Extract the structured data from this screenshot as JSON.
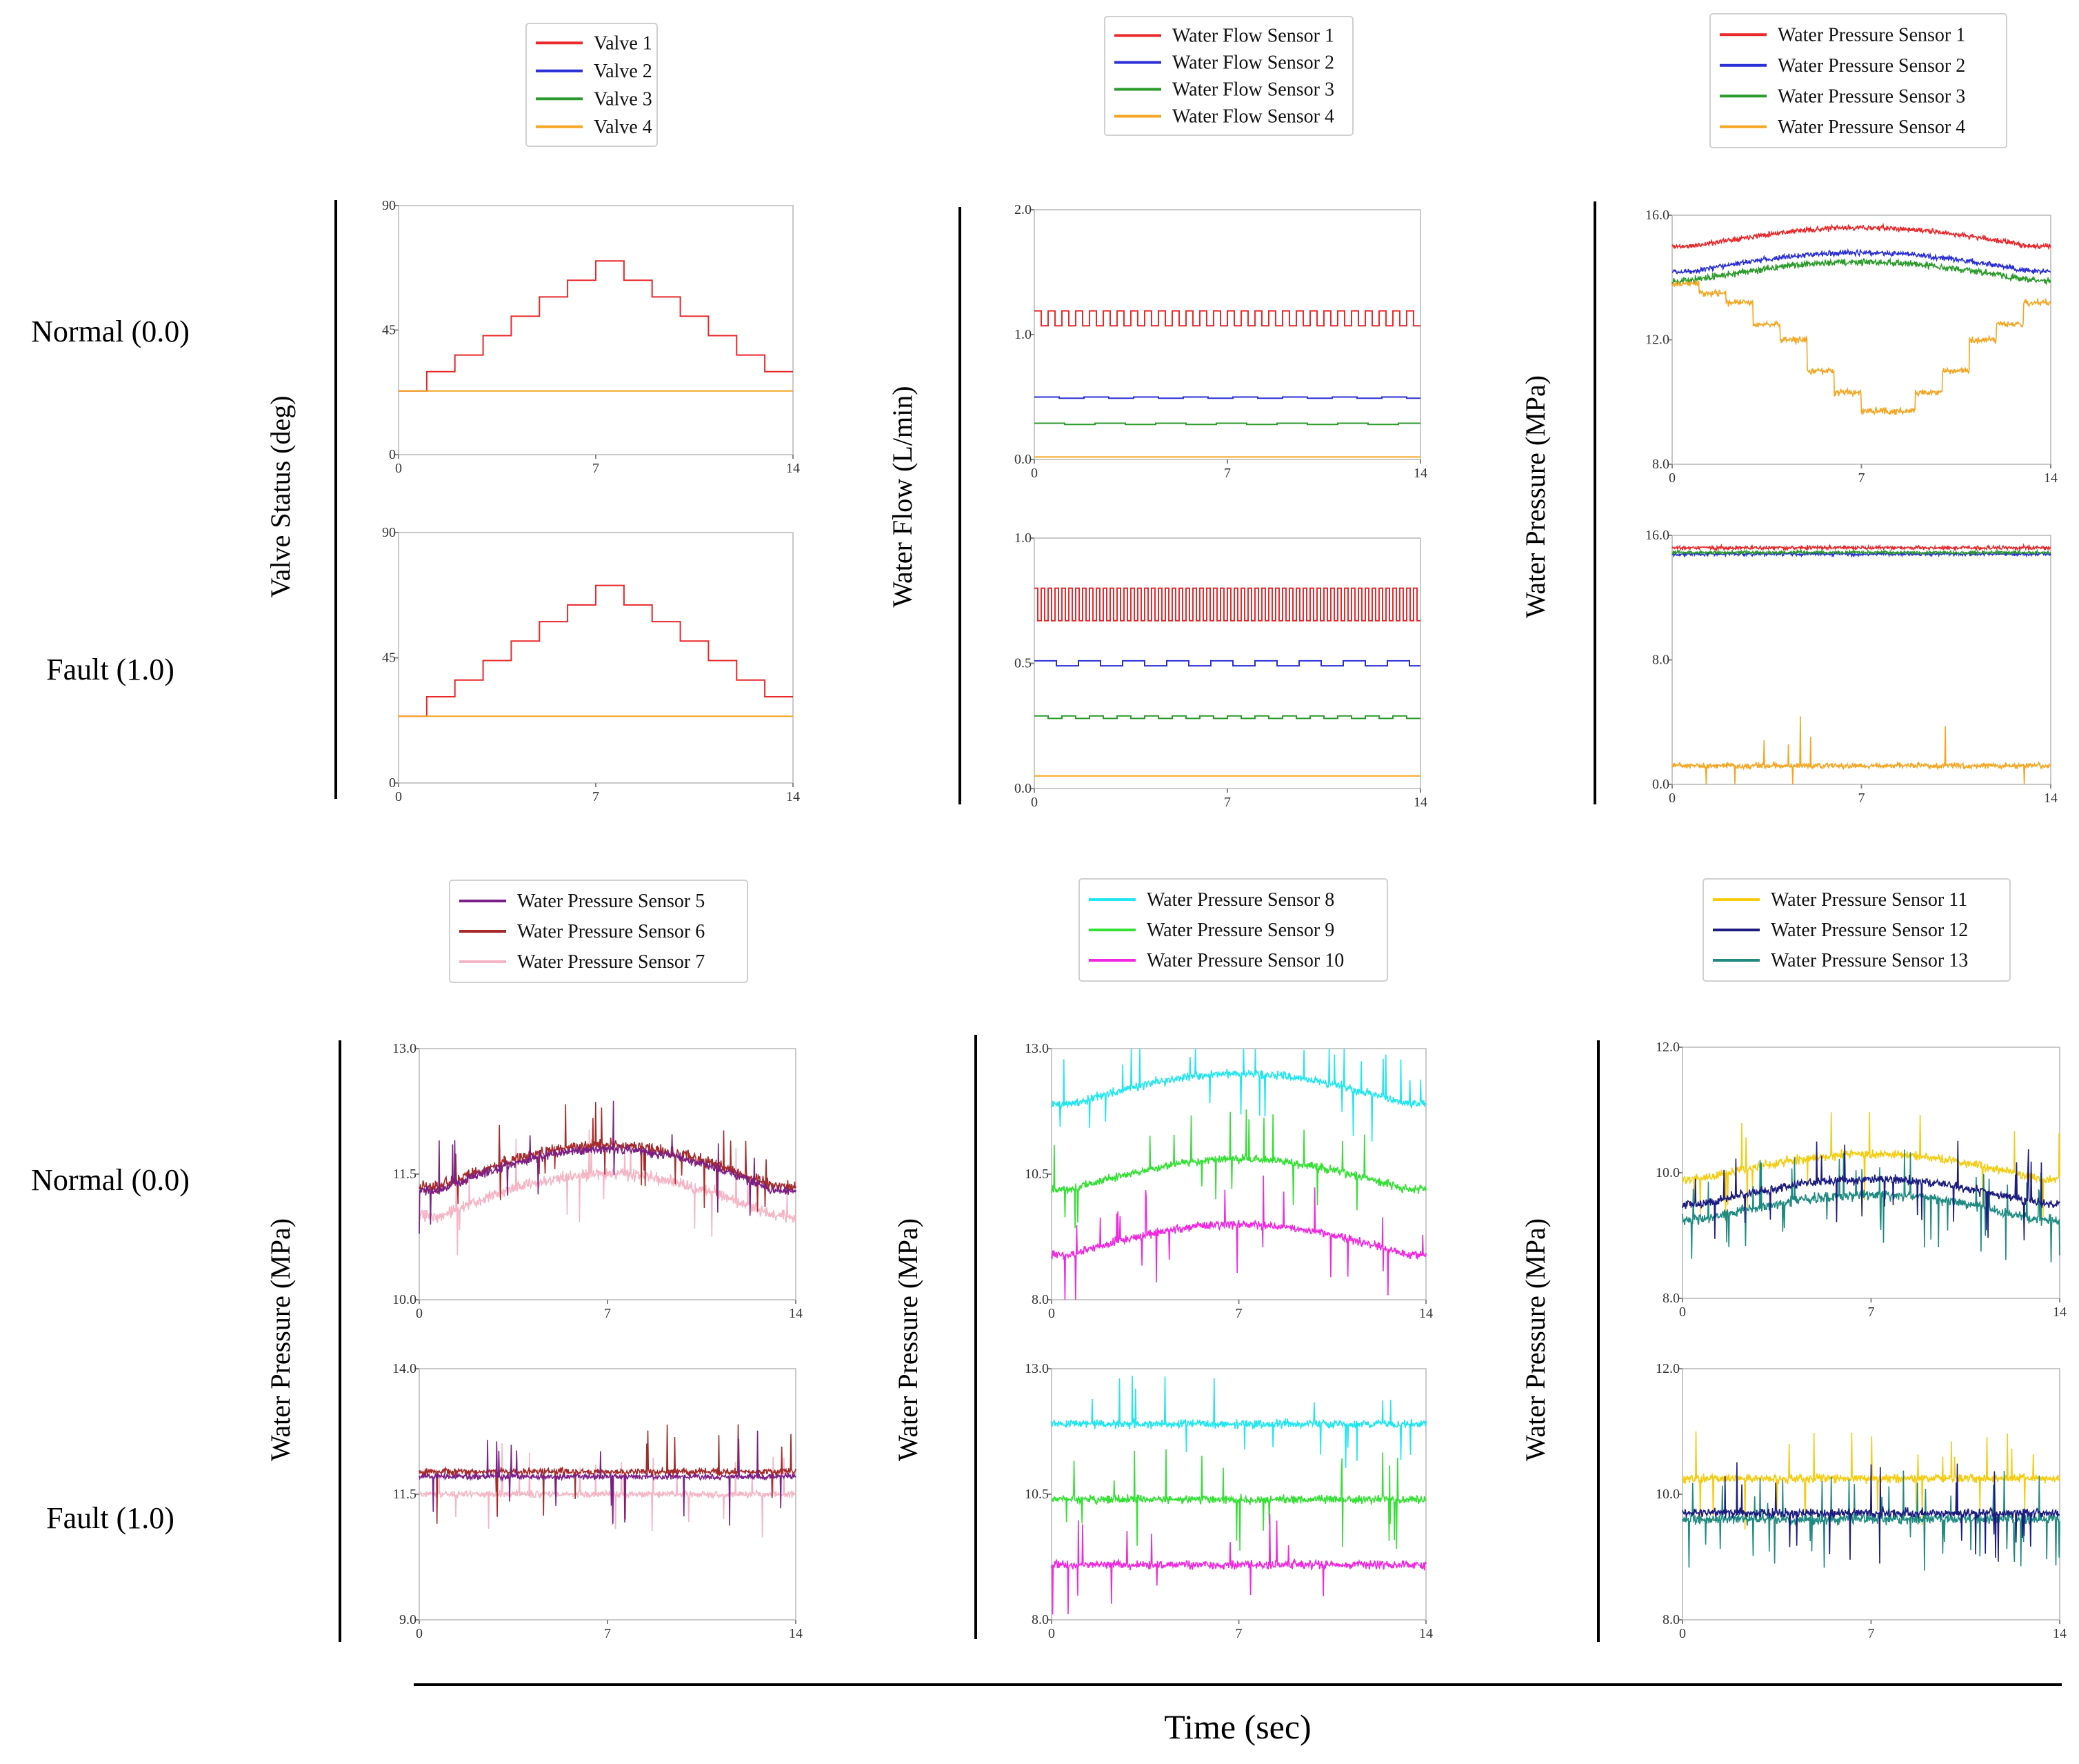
{
  "figure": {
    "row_labels": {
      "normal": "Normal (0.0)",
      "fault": "Fault (1.0)"
    },
    "xlabel": "Time (sec)"
  },
  "colors": {
    "red": "#e8282b",
    "blue": "#2a2ed6",
    "green": "#2a9a2a",
    "orange": "#f5a623",
    "purple": "#7b1f86",
    "brown": "#a52a2a",
    "pink": "#f5b5c5",
    "cyan": "#22e6ee",
    "lime": "#33e033",
    "magenta": "#f028e0",
    "gold": "#f5cc10",
    "navy": "#1c1c80",
    "teal": "#1f8a80"
  },
  "chart_data": [
    {
      "id": "valve",
      "type": "line",
      "ylabel": "Valve Status (deg)",
      "legend": [
        {
          "name": "Valve 1",
          "color": "red"
        },
        {
          "name": "Valve 2",
          "color": "blue"
        },
        {
          "name": "Valve 3",
          "color": "green"
        },
        {
          "name": "Valve 4",
          "color": "orange"
        }
      ],
      "xlim": [
        0,
        14
      ],
      "xticks": [
        "0",
        "7",
        "14"
      ],
      "normal": {
        "ylim": [
          0,
          90
        ],
        "yticks": [
          "0",
          "45",
          "90"
        ],
        "series": [
          {
            "name": "Valve 1",
            "color": "red",
            "style": "steps",
            "x": [
              0,
              1,
              2,
              3,
              4,
              5,
              6,
              7,
              8,
              9,
              10,
              11,
              12,
              13,
              14
            ],
            "values": [
              23,
              30,
              36,
              43,
              50,
              57,
              63,
              70,
              63,
              57,
              50,
              43,
              36,
              30,
              23
            ]
          },
          {
            "name": "Valve 4",
            "color": "orange",
            "style": "flat",
            "value": 23
          }
        ]
      },
      "fault": {
        "ylim": [
          0,
          90
        ],
        "yticks": [
          "0",
          "45",
          "90"
        ],
        "series": [
          {
            "name": "Valve 1",
            "color": "red",
            "style": "steps",
            "x": [
              0,
              1,
              2,
              3,
              4,
              5,
              6,
              7,
              8,
              9,
              10,
              11,
              12,
              13,
              14
            ],
            "values": [
              24,
              31,
              37,
              44,
              51,
              58,
              64,
              71,
              64,
              58,
              51,
              44,
              37,
              31,
              24
            ]
          },
          {
            "name": "Valve 4",
            "color": "orange",
            "style": "flat",
            "value": 24
          }
        ]
      }
    },
    {
      "id": "flow",
      "type": "line",
      "ylabel": "Water Flow (L/min)",
      "legend": [
        {
          "name": "Water Flow Sensor 1",
          "color": "red"
        },
        {
          "name": "Water Flow Sensor 2",
          "color": "blue"
        },
        {
          "name": "Water Flow Sensor 3",
          "color": "green"
        },
        {
          "name": "Water Flow Sensor 4",
          "color": "orange"
        }
      ],
      "xlim": [
        0,
        14
      ],
      "xticks": [
        "0",
        "7",
        "14"
      ],
      "normal": {
        "ylim": [
          0,
          2
        ],
        "yticks": [
          "0.0",
          "1.0",
          "2.0"
        ],
        "series": [
          {
            "name": "Water Flow Sensor 1",
            "color": "red",
            "style": "square",
            "low": 1.07,
            "high": 1.19,
            "period": 0.5
          },
          {
            "name": "Water Flow Sensor 2",
            "color": "blue",
            "style": "square",
            "low": 0.49,
            "high": 0.5,
            "period": 1.8
          },
          {
            "name": "Water Flow Sensor 3",
            "color": "green",
            "style": "square",
            "low": 0.28,
            "high": 0.29,
            "period": 2.2
          },
          {
            "name": "Water Flow Sensor 4",
            "color": "orange",
            "style": "flat",
            "value": 0.02
          }
        ]
      },
      "fault": {
        "ylim": [
          0,
          1
        ],
        "yticks": [
          "0.0",
          "0.5",
          "1.0"
        ],
        "series": [
          {
            "name": "Water Flow Sensor 1",
            "color": "red",
            "style": "square",
            "low": 0.67,
            "high": 0.8,
            "period": 0.25
          },
          {
            "name": "Water Flow Sensor 2",
            "color": "blue",
            "style": "square",
            "low": 0.49,
            "high": 0.51,
            "period": 1.6
          },
          {
            "name": "Water Flow Sensor 3",
            "color": "green",
            "style": "square",
            "low": 0.28,
            "high": 0.29,
            "period": 1.0
          },
          {
            "name": "Water Flow Sensor 4",
            "color": "orange",
            "style": "flat",
            "value": 0.05
          }
        ]
      }
    },
    {
      "id": "pressure-1-4",
      "type": "line",
      "ylabel": "Water Pressure (MPa)",
      "legend": [
        {
          "name": "Water Pressure Sensor 1",
          "color": "red"
        },
        {
          "name": "Water Pressure Sensor 2",
          "color": "blue"
        },
        {
          "name": "Water Pressure Sensor 3",
          "color": "green"
        },
        {
          "name": "Water Pressure Sensor 4",
          "color": "orange"
        }
      ],
      "xlim": [
        0,
        14
      ],
      "xticks": [
        "0",
        "7",
        "14"
      ],
      "normal": {
        "ylim": [
          8,
          16
        ],
        "yticks": [
          "8.0",
          "12.0",
          "16.0"
        ],
        "series": [
          {
            "name": "Water Pressure Sensor 1",
            "color": "red",
            "style": "noisy",
            "base": 15.0,
            "bump": 0.6,
            "noise": 0.12,
            "spikes": 0,
            "seed": 11
          },
          {
            "name": "Water Pressure Sensor 2",
            "color": "blue",
            "style": "noisy",
            "base": 14.2,
            "bump": 0.6,
            "noise": 0.12,
            "spikes": 0,
            "seed": 12
          },
          {
            "name": "Water Pressure Sensor 3",
            "color": "green",
            "style": "noisy",
            "base": 13.9,
            "bump": 0.6,
            "noise": 0.15,
            "spikes": 0,
            "seed": 13
          },
          {
            "name": "Water Pressure Sensor 4",
            "color": "orange",
            "style": "stepnoisy",
            "x": [
              0,
              1,
              2,
              3,
              4,
              5,
              6,
              7,
              8,
              9,
              10,
              11,
              12,
              13,
              14
            ],
            "values": [
              13.8,
              13.5,
              13.2,
              12.5,
              12.0,
              11.0,
              10.3,
              9.7,
              9.7,
              10.3,
              11.0,
              12.0,
              12.5,
              13.2,
              13.2
            ],
            "noise": 0.15,
            "seed": 14
          }
        ]
      },
      "fault": {
        "ylim": [
          0,
          16
        ],
        "yticks": [
          "0.0",
          "8.0",
          "16.0"
        ],
        "series": [
          {
            "name": "Water Pressure Sensor 1",
            "color": "red",
            "style": "noisy",
            "base": 15.2,
            "bump": 0,
            "noise": 0.18,
            "spikes": 0,
            "seed": 21
          },
          {
            "name": "Water Pressure Sensor 2",
            "color": "blue",
            "style": "noisy",
            "base": 14.8,
            "bump": 0,
            "noise": 0.15,
            "spikes": 0,
            "seed": 22
          },
          {
            "name": "Water Pressure Sensor 3",
            "color": "green",
            "style": "noisy",
            "base": 14.9,
            "bump": 0,
            "noise": 0.15,
            "spikes": 0,
            "seed": 23
          },
          {
            "name": "Water Pressure Sensor 4",
            "color": "orange",
            "style": "noisy",
            "base": 1.2,
            "bump": 0,
            "noise": 0.25,
            "spikes": 0.01,
            "seed": 24
          }
        ]
      }
    },
    {
      "id": "pressure-5-7",
      "type": "line",
      "ylabel": "Water Pressure (MPa)",
      "legend": [
        {
          "name": "Water Pressure Sensor 5",
          "color": "purple"
        },
        {
          "name": "Water Pressure Sensor 6",
          "color": "brown"
        },
        {
          "name": "Water Pressure Sensor 7",
          "color": "pink"
        }
      ],
      "xlim": [
        0,
        14
      ],
      "xticks": [
        "0",
        "7",
        "14"
      ],
      "normal": {
        "ylim": [
          10,
          13
        ],
        "yticks": [
          "10.0",
          "11.5",
          "13.0"
        ],
        "series": [
          {
            "name": "Water Pressure Sensor 7",
            "color": "pink",
            "style": "noisy",
            "base": 11.0,
            "bump": 0.5,
            "noise": 0.1,
            "spikes": 0.03,
            "seed": 31
          },
          {
            "name": "Water Pressure Sensor 6",
            "color": "brown",
            "style": "noisy",
            "base": 11.35,
            "bump": 0.5,
            "noise": 0.1,
            "spikes": 0.03,
            "seed": 32
          },
          {
            "name": "Water Pressure Sensor 5",
            "color": "purple",
            "style": "noisy",
            "base": 11.3,
            "bump": 0.5,
            "noise": 0.08,
            "spikes": 0.02,
            "seed": 33
          }
        ]
      },
      "fault": {
        "ylim": [
          9,
          14
        ],
        "yticks": [
          "9.0",
          "11.5",
          "14.0"
        ],
        "series": [
          {
            "name": "Water Pressure Sensor 7",
            "color": "pink",
            "style": "noisy",
            "base": 11.5,
            "bump": 0,
            "noise": 0.1,
            "spikes": 0.03,
            "seed": 41
          },
          {
            "name": "Water Pressure Sensor 6",
            "color": "brown",
            "style": "noisy",
            "base": 11.95,
            "bump": 0,
            "noise": 0.1,
            "spikes": 0.03,
            "seed": 42
          },
          {
            "name": "Water Pressure Sensor 5",
            "color": "purple",
            "style": "noisy",
            "base": 11.85,
            "bump": 0,
            "noise": 0.08,
            "spikes": 0.02,
            "seed": 43
          }
        ]
      }
    },
    {
      "id": "pressure-8-10",
      "type": "line",
      "ylabel": "Water Pressure (MPa)",
      "legend": [
        {
          "name": "Water Pressure Sensor 8",
          "color": "cyan"
        },
        {
          "name": "Water Pressure Sensor 9",
          "color": "lime"
        },
        {
          "name": "Water Pressure Sensor 10",
          "color": "magenta"
        }
      ],
      "xlim": [
        0,
        14
      ],
      "xticks": [
        "0",
        "7",
        "14"
      ],
      "normal": {
        "ylim": [
          8,
          13
        ],
        "yticks": [
          "8.0",
          "10.5",
          "13.0"
        ],
        "series": [
          {
            "name": "Water Pressure Sensor 8",
            "color": "cyan",
            "style": "noisy",
            "base": 11.9,
            "bump": 0.6,
            "noise": 0.12,
            "spikes": 0.03,
            "seed": 51
          },
          {
            "name": "Water Pressure Sensor 9",
            "color": "lime",
            "style": "noisy",
            "base": 10.2,
            "bump": 0.6,
            "noise": 0.12,
            "spikes": 0.03,
            "seed": 52
          },
          {
            "name": "Water Pressure Sensor 10",
            "color": "magenta",
            "style": "noisy",
            "base": 8.9,
            "bump": 0.6,
            "noise": 0.12,
            "spikes": 0.03,
            "seed": 53
          }
        ]
      },
      "fault": {
        "ylim": [
          8,
          13
        ],
        "yticks": [
          "8.0",
          "10.5",
          "13.0"
        ],
        "series": [
          {
            "name": "Water Pressure Sensor 8",
            "color": "cyan",
            "style": "noisy",
            "base": 11.9,
            "bump": 0,
            "noise": 0.12,
            "spikes": 0.03,
            "seed": 61
          },
          {
            "name": "Water Pressure Sensor 9",
            "color": "lime",
            "style": "noisy",
            "base": 10.4,
            "bump": 0,
            "noise": 0.12,
            "spikes": 0.03,
            "seed": 62
          },
          {
            "name": "Water Pressure Sensor 10",
            "color": "magenta",
            "style": "noisy",
            "base": 9.1,
            "bump": 0,
            "noise": 0.12,
            "spikes": 0.03,
            "seed": 63
          }
        ]
      }
    },
    {
      "id": "pressure-11-13",
      "type": "line",
      "ylabel": "Water Pressure (MPa)",
      "legend": [
        {
          "name": "Water Pressure Sensor 11",
          "color": "gold"
        },
        {
          "name": "Water Pressure Sensor 12",
          "color": "navy"
        },
        {
          "name": "Water Pressure Sensor 13",
          "color": "teal"
        }
      ],
      "xlim": [
        0,
        14
      ],
      "xticks": [
        "0",
        "7",
        "14"
      ],
      "normal": {
        "ylim": [
          8,
          12
        ],
        "yticks": [
          "8.0",
          "10.0",
          "12.0"
        ],
        "series": [
          {
            "name": "Water Pressure Sensor 11",
            "color": "gold",
            "style": "noisy",
            "base": 9.9,
            "bump": 0.4,
            "noise": 0.1,
            "spikes": 0.03,
            "seed": 71
          },
          {
            "name": "Water Pressure Sensor 13",
            "color": "teal",
            "style": "noisy",
            "base": 9.25,
            "bump": 0.4,
            "noise": 0.12,
            "spikes": 0.05,
            "seed": 73
          },
          {
            "name": "Water Pressure Sensor 12",
            "color": "navy",
            "style": "noisy",
            "base": 9.5,
            "bump": 0.4,
            "noise": 0.1,
            "spikes": 0.03,
            "seed": 72
          }
        ]
      },
      "fault": {
        "ylim": [
          8,
          12
        ],
        "yticks": [
          "8.0",
          "10.0",
          "12.0"
        ],
        "series": [
          {
            "name": "Water Pressure Sensor 11",
            "color": "gold",
            "style": "noisy",
            "base": 10.25,
            "bump": 0,
            "noise": 0.1,
            "spikes": 0.03,
            "seed": 81
          },
          {
            "name": "Water Pressure Sensor 13",
            "color": "teal",
            "style": "noisy",
            "base": 9.6,
            "bump": 0,
            "noise": 0.12,
            "spikes": 0.05,
            "seed": 83
          },
          {
            "name": "Water Pressure Sensor 12",
            "color": "navy",
            "style": "noisy",
            "base": 9.7,
            "bump": 0,
            "noise": 0.1,
            "spikes": 0.03,
            "seed": 82
          }
        ]
      }
    }
  ]
}
